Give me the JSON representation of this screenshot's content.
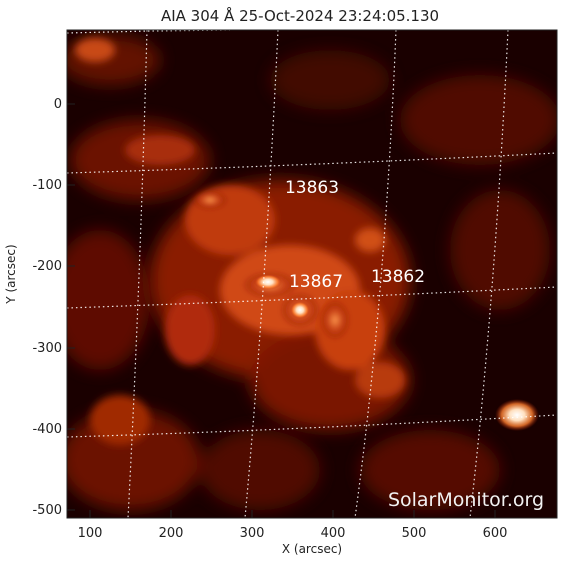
{
  "title": "AIA 304 Å 25-Oct-2024 23:24:05.130",
  "x_axis": {
    "label": "X (arcsec)",
    "ticks": [
      "100",
      "200",
      "300",
      "400",
      "500",
      "600"
    ]
  },
  "y_axis": {
    "label": "Y (arcsec)",
    "ticks": [
      "0",
      "-100",
      "-200",
      "-300",
      "-400",
      "-500"
    ]
  },
  "active_regions": [
    "13863",
    "13867",
    "13862"
  ],
  "watermark": "SolarMonitor.org",
  "colors": {
    "background": "#ffffff",
    "image_base": "#1a0000",
    "plasma_mid": "#b52a08",
    "plasma_bright": "#ff8a3a",
    "plasma_core": "#ffffff",
    "grid": "#ffffff"
  }
}
